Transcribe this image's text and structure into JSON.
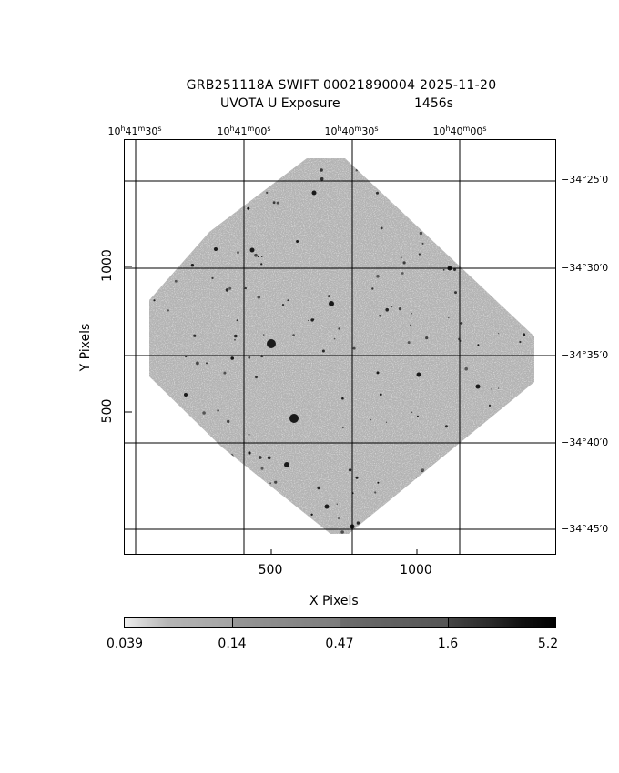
{
  "title": {
    "line1": "GRB251118A SWIFT 00021890004 2025-11-20",
    "instrument": "UVOTA U Exposure",
    "exposure": "1456s"
  },
  "ra_ticks": [
    {
      "h": "10",
      "m": "41",
      "s": "30"
    },
    {
      "h": "10",
      "m": "41",
      "s": "00"
    },
    {
      "h": "10",
      "m": "40",
      "s": "30"
    },
    {
      "h": "10",
      "m": "40",
      "s": "00"
    }
  ],
  "dec_ticks": [
    "−34°25′0",
    "−34°30′0",
    "−34°35′0",
    "−34°40′0",
    "−34°45′0"
  ],
  "axes": {
    "x_label": "X Pixels",
    "y_label": "Y Pixels",
    "x_ticks": [
      "500",
      "1000"
    ],
    "y_ticks": [
      "500",
      "1000"
    ]
  },
  "colorbar": {
    "labels": [
      "0.039",
      "0.14",
      "0.47",
      "1.6",
      "5.2"
    ]
  },
  "colors": {
    "background": "#ffffff",
    "image_gray": "#b3b3b3",
    "grid": "#000000"
  }
}
